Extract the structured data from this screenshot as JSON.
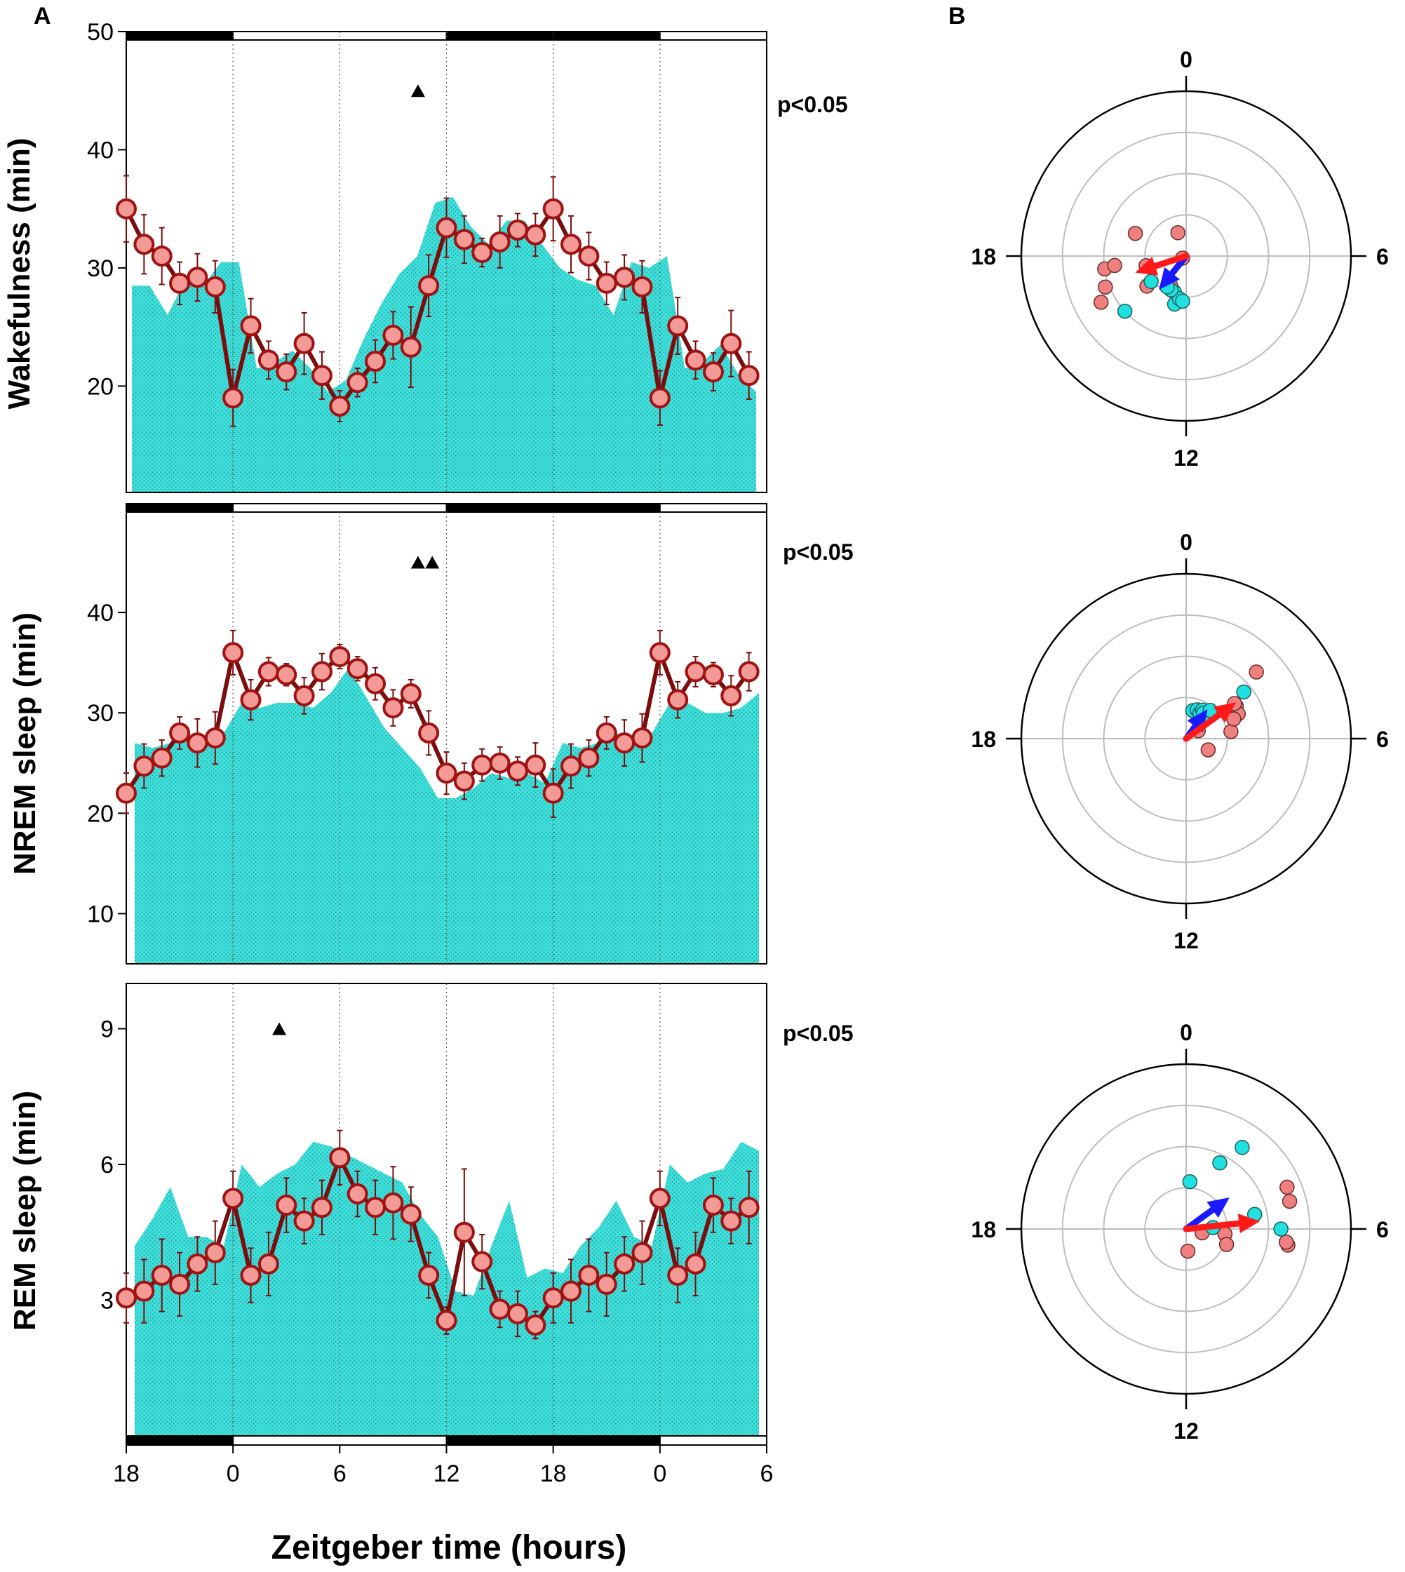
{
  "panel_labels": {
    "A": "A",
    "B": "B"
  },
  "x_axis": {
    "label": "Zeitgeber time (hours)",
    "ticks": [
      "18",
      "0",
      "6",
      "12",
      "18",
      "0",
      "6"
    ]
  },
  "colors": {
    "fill": "#3fe0dc",
    "line": "#7a0d0d",
    "marker_fill": "#f39a97",
    "marker_edge": "#a11212",
    "arrow_red": "#ff1a1a",
    "arrow_blue": "#1a1aff",
    "dot_red": "#f08080",
    "dot_cyan": "#20e0e0"
  },
  "chart_data": [
    {
      "type": "line",
      "id": "wake",
      "ylabel": "Wakefulness (min)",
      "yticks": [
        "20",
        "30",
        "40",
        "50"
      ],
      "ylim": [
        11,
        50
      ],
      "pvalue": "p<0.05",
      "x": [
        -6,
        -5,
        -4,
        -3,
        -2,
        -1,
        0,
        1,
        2,
        3,
        4,
        5,
        6,
        7,
        8,
        9,
        10,
        11,
        12,
        13,
        14,
        15,
        16,
        17,
        18,
        19,
        20,
        21,
        22,
        23,
        24,
        25,
        26,
        27,
        28,
        29
      ],
      "series": [
        {
          "name": "mean",
          "values": [
            35,
            32,
            31,
            28.7,
            29.2,
            28.4,
            19,
            25.1,
            22.2,
            21.2,
            23.6,
            20.9,
            18.3,
            20.3,
            22.1,
            24.3,
            23.3,
            28.5,
            33.4,
            32.4,
            31.3,
            32.2,
            33.2,
            32.8,
            35,
            32,
            31,
            28.7,
            29.2,
            28.4,
            19,
            25.1,
            22.2,
            21.2,
            23.6,
            20.9
          ],
          "errors": [
            2.8,
            2.5,
            2.4,
            1.8,
            2.0,
            2.2,
            2.4,
            2.3,
            1.6,
            1.5,
            2.6,
            2.0,
            1.3,
            1.2,
            1.8,
            2.0,
            3.4,
            2.6,
            2.5,
            2.0,
            1.2,
            2.2,
            1.4,
            1.8,
            2.7,
            2.4,
            2.0,
            1.8,
            1.9,
            2.2,
            2.3,
            2.4,
            1.6,
            1.6,
            2.8,
            2.0
          ]
        },
        {
          "name": "control",
          "values": [
            28.5,
            28.5,
            26,
            29,
            28.5,
            30.5,
            30.5,
            21.5,
            22,
            23,
            21.5,
            19.5,
            20.5,
            24,
            27,
            29.5,
            31,
            35.5,
            36,
            33.5,
            32,
            34,
            34,
            32,
            30,
            29,
            28.5,
            26,
            30.5,
            30,
            31,
            21.5,
            22,
            23.5,
            21,
            19.5
          ]
        }
      ],
      "markers": [
        10.4
      ],
      "marker_y": 45,
      "bars": [
        {
          "from": -6,
          "to": 0,
          "color": "black"
        },
        {
          "from": 0,
          "to": 12,
          "color": "white"
        },
        {
          "from": 12,
          "to": 24,
          "color": "black"
        },
        {
          "from": 24,
          "to": 30,
          "color": "white"
        }
      ]
    },
    {
      "type": "line",
      "id": "nrem",
      "ylabel": "NREM sleep (min)",
      "yticks": [
        "10",
        "20",
        "30",
        "40"
      ],
      "ylim": [
        5,
        50
      ],
      "pvalue": "p<0.05",
      "x": [
        -6,
        -5,
        -4,
        -3,
        -2,
        -1,
        0,
        1,
        2,
        3,
        4,
        5,
        6,
        7,
        8,
        9,
        10,
        11,
        12,
        13,
        14,
        15,
        16,
        17,
        18,
        19,
        20,
        21,
        22,
        23,
        24,
        25,
        26,
        27,
        28,
        29
      ],
      "series": [
        {
          "name": "mean",
          "values": [
            22,
            24.7,
            25.5,
            28,
            27,
            27.5,
            36,
            31.3,
            34.1,
            33.8,
            31.7,
            34.1,
            35.6,
            34.4,
            32.9,
            30.5,
            31.9,
            28,
            24,
            23.2,
            24.8,
            25,
            24.2,
            24.8,
            22,
            24.7,
            25.5,
            28,
            27,
            27.5,
            36,
            31.3,
            34.1,
            33.8,
            31.7,
            34.1
          ],
          "errors": [
            2.0,
            2.2,
            1.8,
            1.6,
            2.4,
            2.6,
            2.2,
            2.0,
            1.4,
            1.1,
            1.8,
            1.8,
            1.2,
            1.2,
            1.6,
            1.8,
            1.4,
            2.2,
            2.1,
            1.8,
            1.6,
            1.6,
            1.4,
            2.2,
            2.4,
            2.2,
            1.8,
            1.6,
            2.3,
            2.4,
            2.2,
            1.8,
            1.5,
            1.2,
            2.0,
            1.9
          ]
        },
        {
          "name": "control",
          "values": [
            27,
            26.5,
            27,
            27.5,
            27.5,
            28,
            31,
            30.5,
            31,
            31,
            30.5,
            32,
            34.5,
            31.5,
            28.5,
            26.5,
            24.5,
            21.5,
            21.5,
            22.5,
            24,
            23.5,
            24,
            23,
            27,
            26.5,
            27,
            28,
            27.5,
            28,
            31,
            31,
            30,
            30,
            30.5,
            32
          ]
        }
      ],
      "markers": [
        10.4,
        11.2
      ],
      "marker_y": 45,
      "bars": [
        {
          "from": -6,
          "to": 0,
          "color": "black"
        },
        {
          "from": 0,
          "to": 12,
          "color": "white"
        },
        {
          "from": 12,
          "to": 24,
          "color": "black"
        },
        {
          "from": 24,
          "to": 30,
          "color": "white"
        }
      ]
    },
    {
      "type": "line",
      "id": "rem",
      "ylabel": "REM sleep (min)",
      "yticks": [
        "3",
        "6",
        "9"
      ],
      "ylim": [
        0,
        10
      ],
      "pvalue": "p<0.05",
      "x": [
        -6,
        -5,
        -4,
        -3,
        -2,
        -1,
        0,
        1,
        2,
        3,
        4,
        5,
        6,
        7,
        8,
        9,
        10,
        11,
        12,
        13,
        14,
        15,
        16,
        17,
        18,
        19,
        20,
        21,
        22,
        23,
        24,
        25,
        26,
        27,
        28,
        29
      ],
      "series": [
        {
          "name": "mean",
          "values": [
            3.05,
            3.2,
            3.55,
            3.35,
            3.8,
            4.05,
            5.25,
            3.55,
            3.8,
            5.1,
            4.75,
            5.05,
            6.15,
            5.35,
            5.05,
            5.15,
            4.9,
            3.55,
            2.55,
            4.5,
            3.85,
            2.8,
            2.7,
            2.45,
            3.05,
            3.2,
            3.55,
            3.35,
            3.8,
            4.05,
            5.25,
            3.55,
            3.8,
            5.1,
            4.75,
            5.05
          ],
          "errors": [
            0.55,
            0.7,
            0.8,
            0.7,
            0.6,
            0.7,
            0.6,
            0.6,
            0.7,
            0.6,
            0.5,
            0.6,
            0.6,
            0.5,
            0.6,
            0.8,
            0.6,
            0.5,
            0.3,
            1.4,
            0.6,
            0.4,
            0.5,
            0.3,
            0.55,
            0.7,
            0.8,
            0.7,
            0.6,
            0.7,
            0.6,
            0.6,
            0.7,
            0.6,
            0.5,
            0.8
          ]
        },
        {
          "name": "control",
          "values": [
            4.2,
            4.8,
            5.5,
            4.4,
            4.4,
            4.2,
            6,
            5.5,
            5.8,
            6,
            6.5,
            6.4,
            6.2,
            6,
            5.8,
            5.6,
            4.9,
            4.4,
            3.2,
            3.1,
            4.2,
            5.2,
            3.5,
            3.7,
            3.6,
            4.2,
            4.6,
            5.2,
            4.4,
            4.2,
            6,
            5.6,
            5.8,
            5.9,
            6.5,
            6.3
          ]
        }
      ],
      "markers": [
        2.6
      ],
      "marker_y": 9,
      "bars": [
        {
          "from": -6,
          "to": 0,
          "color": "black"
        },
        {
          "from": 0,
          "to": 12,
          "color": "white"
        },
        {
          "from": 12,
          "to": 24,
          "color": "black"
        },
        {
          "from": 24,
          "to": 30,
          "color": "white"
        }
      ]
    },
    {
      "type": "polar",
      "id": "wake-phase",
      "labels": {
        "top": "0",
        "right": "6",
        "bottom": "12",
        "left": "18"
      },
      "rings": [
        1,
        2,
        3
      ],
      "rmax": 4,
      "red_points": [
        {
          "h": 22.7,
          "r": 0.6
        },
        {
          "h": 16.0,
          "r": 0.1
        },
        {
          "h": 19.6,
          "r": 1.35
        },
        {
          "h": 17.4,
          "r": 2.0
        },
        {
          "h": 17.1,
          "r": 1.0
        },
        {
          "h": 17.5,
          "r": 1.75
        },
        {
          "h": 16.6,
          "r": 2.1
        },
        {
          "h": 16.1,
          "r": 2.35
        },
        {
          "h": 13.8,
          "r": 0.82
        },
        {
          "h": 15.5,
          "r": 1.2
        }
      ],
      "cyan_points": [
        {
          "h": 15.6,
          "r": 1.05
        },
        {
          "h": 15.2,
          "r": 2.0
        },
        {
          "h": 13.2,
          "r": 0.92
        },
        {
          "h": 12.9,
          "r": 1.2
        },
        {
          "h": 12.6,
          "r": 1.05
        },
        {
          "h": 12.3,
          "r": 1.1
        },
        {
          "h": 13.6,
          "r": 0.9
        },
        {
          "h": 14.1,
          "r": 0.88
        }
      ],
      "red_vector": {
        "h": 16.8,
        "r": 1.3
      },
      "blue_vector": {
        "h": 14.6,
        "r": 1.05
      }
    },
    {
      "type": "polar",
      "id": "nrem-phase",
      "labels": {
        "top": "0",
        "right": "6",
        "bottom": "12",
        "left": "18"
      },
      "rings": [
        1,
        2,
        3
      ],
      "rmax": 4,
      "red_points": [
        {
          "h": 3.1,
          "r": 2.35
        },
        {
          "h": 3.8,
          "r": 1.45
        },
        {
          "h": 4.3,
          "r": 1.4
        },
        {
          "h": 5.4,
          "r": 1.1
        },
        {
          "h": 4.5,
          "r": 1.25
        },
        {
          "h": 3.6,
          "r": 1.45
        },
        {
          "h": 7.8,
          "r": 0.6
        },
        {
          "h": 3.8,
          "r": 0.35
        }
      ],
      "cyan_points": [
        {
          "h": 0.9,
          "r": 0.7
        },
        {
          "h": 1.4,
          "r": 0.75
        },
        {
          "h": 1.9,
          "r": 0.7
        },
        {
          "h": 2.0,
          "r": 0.8
        },
        {
          "h": 2.3,
          "r": 0.75
        },
        {
          "h": 3.0,
          "r": 0.72
        },
        {
          "h": 3.4,
          "r": 1.8
        },
        {
          "h": 2.7,
          "r": 0.9
        }
      ],
      "red_vector": {
        "h": 3.6,
        "r": 1.5
      },
      "blue_vector": {
        "h": 2.4,
        "r": 0.88
      }
    },
    {
      "type": "polar",
      "id": "rem-phase",
      "labels": {
        "top": "0",
        "right": "6",
        "bottom": "12",
        "left": "18"
      },
      "rings": [
        1,
        2,
        3
      ],
      "rmax": 4,
      "red_points": [
        {
          "h": 4.5,
          "r": 2.65
        },
        {
          "h": 5.0,
          "r": 2.6
        },
        {
          "h": 6.6,
          "r": 2.5
        },
        {
          "h": 6.5,
          "r": 2.45
        },
        {
          "h": 6.5,
          "r": 0.95
        },
        {
          "h": 7.4,
          "r": 1.05
        },
        {
          "h": 6.9,
          "r": 0.4
        },
        {
          "h": 11.7,
          "r": 0.54
        }
      ],
      "cyan_points": [
        {
          "h": 0.3,
          "r": 1.15
        },
        {
          "h": 1.8,
          "r": 1.8
        },
        {
          "h": 2.3,
          "r": 2.4
        },
        {
          "h": 5.8,
          "r": 0.65
        },
        {
          "h": 5.2,
          "r": 1.7
        },
        {
          "h": 6.0,
          "r": 2.3
        }
      ],
      "red_vector": {
        "h": 5.6,
        "r": 1.8
      },
      "blue_vector": {
        "h": 3.6,
        "r": 1.3
      }
    }
  ]
}
